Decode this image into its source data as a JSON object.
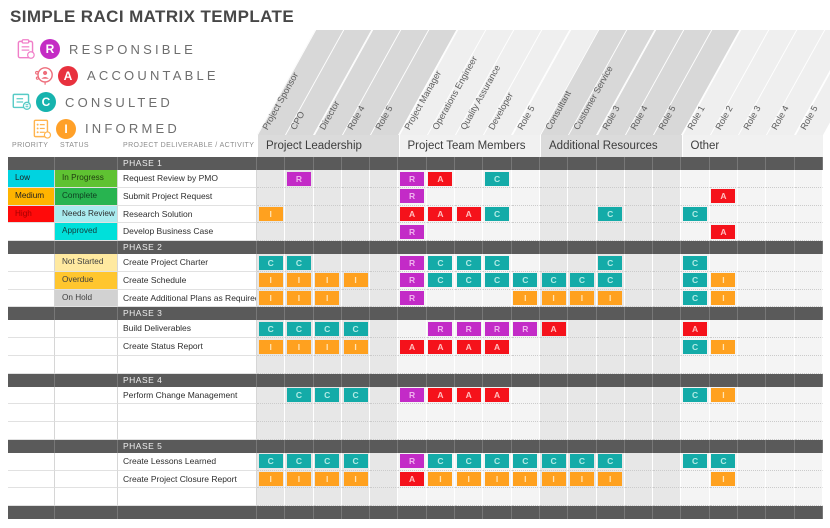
{
  "title": "SIMPLE RACI MATRIX TEMPLATE",
  "legend": [
    {
      "letter": "R",
      "label": "RESPONSIBLE",
      "color": "#C42CC4",
      "icon": "clipboard-icon",
      "icon_color": "#F07EC8"
    },
    {
      "letter": "A",
      "label": "ACCOUNTABLE",
      "color": "#E8313E",
      "icon": "person-icon",
      "icon_color": "#EE6E7C"
    },
    {
      "letter": "C",
      "label": "CONSULTED",
      "color": "#16B3AE",
      "icon": "monitor-icon",
      "icon_color": "#57CBC6"
    },
    {
      "letter": "I",
      "label": "INFORMED",
      "color": "#FFA028",
      "icon": "list-icon",
      "icon_color": "#FFB44E"
    }
  ],
  "table_headers": {
    "priority": "PRIORITY",
    "status": "STATUS",
    "deliverable": "PROJECT DELIVERABLE / ACTIVITY"
  },
  "groups": [
    {
      "label": "Project Leadership",
      "roles": [
        "Project Sponsor",
        "CPO",
        "Director",
        "Role 4",
        "Role 5"
      ]
    },
    {
      "label": "Project Team Members",
      "roles": [
        "Project Manager",
        "Operations Engineer",
        "Quality Assurance",
        "Developer",
        "Role 5"
      ]
    },
    {
      "label": "Additional Resources",
      "roles": [
        "Consultant",
        "Customer Service",
        "Role 3",
        "Role 4",
        "Role 5"
      ]
    },
    {
      "label": "Other",
      "roles": [
        "Role 1",
        "Role 2",
        "Role 3",
        "Role 4",
        "Role 5"
      ]
    }
  ],
  "raci_colors": {
    "R": {
      "bg": "#C32BC7",
      "fg": "#F0B2EE"
    },
    "A": {
      "bg": "#F5121B",
      "fg": "#FFC0C0"
    },
    "C": {
      "bg": "#14ABA8",
      "fg": "#B2EBE5"
    },
    "I": {
      "bg": "#FFA11F",
      "fg": "#FFE4B5"
    }
  },
  "priority_colors": {
    "Low": {
      "bg": "#00D3E0",
      "fg": "#1f1f1f"
    },
    "Medium": {
      "bg": "#FFB400",
      "fg": "#1f1f1f"
    },
    "High": {
      "bg": "#FF0A0A",
      "fg": "#A40000"
    }
  },
  "status_colors": {
    "In Progress": {
      "bg": "#5FC232",
      "fg": "#1f3a10"
    },
    "Complete": {
      "bg": "#28B450",
      "fg": "#0f3d20"
    },
    "Needs Review": {
      "bg": "#A9EBEF",
      "fg": "#2e2e2e"
    },
    "Approved": {
      "bg": "#00E0DA",
      "fg": "#123c3c"
    },
    "Not Started": {
      "bg": "#FFE9A0",
      "fg": "#3f3f3f"
    },
    "Overdue": {
      "bg": "#FFC62E",
      "fg": "#3f3f3f"
    },
    "On Hold": {
      "bg": "#D2D2D2",
      "fg": "#3f3f3f"
    }
  },
  "phases": [
    {
      "label": "PHASE 1",
      "rows": [
        {
          "priority": "Low",
          "status": "In Progress",
          "activity": "Request Review by PMO",
          "cells": {
            "2": "R",
            "6": "R",
            "7": "A",
            "9": "C"
          }
        },
        {
          "priority": "Medium",
          "status": "Complete",
          "activity": "Submit Project Request",
          "cells": {
            "6": "R",
            "17": "A"
          }
        },
        {
          "priority": "High",
          "status": "Needs Review",
          "activity": "Research Solution",
          "cells": {
            "1": "I",
            "6": "A",
            "7": "A",
            "8": "A",
            "9": "C",
            "13": "C",
            "16": "C"
          }
        },
        {
          "priority": "",
          "status": "Approved",
          "activity": "Develop Business Case",
          "cells": {
            "6": "R",
            "17": "A"
          }
        }
      ]
    },
    {
      "label": "PHASE 2",
      "rows": [
        {
          "priority": "",
          "status": "Not Started",
          "activity": "Create Project Charter",
          "cells": {
            "1": "C",
            "2": "C",
            "6": "R",
            "7": "C",
            "8": "C",
            "9": "C",
            "13": "C",
            "16": "C"
          }
        },
        {
          "priority": "",
          "status": "Overdue",
          "activity": "Create Schedule",
          "cells": {
            "1": "I",
            "2": "I",
            "3": "I",
            "4": "I",
            "6": "R",
            "7": "C",
            "8": "C",
            "9": "C",
            "10": "C",
            "11": "C",
            "12": "C",
            "13": "C",
            "16": "C",
            "17": "I"
          }
        },
        {
          "priority": "",
          "status": "On Hold",
          "activity": "Create Additional Plans as Required",
          "cells": {
            "1": "I",
            "2": "I",
            "3": "I",
            "6": "R",
            "10": "I",
            "11": "I",
            "12": "I",
            "13": "I",
            "16": "C",
            "17": "I"
          }
        }
      ]
    },
    {
      "label": "PHASE 3",
      "rows": [
        {
          "priority": "",
          "status": "",
          "activity": "Build Deliverables",
          "cells": {
            "1": "C",
            "2": "C",
            "3": "C",
            "4": "C",
            "7": "R",
            "8": "R",
            "9": "R",
            "10": "R",
            "11": "A",
            "16": "A"
          }
        },
        {
          "priority": "",
          "status": "",
          "activity": "Create Status Report",
          "cells": {
            "1": "I",
            "2": "I",
            "3": "I",
            "4": "I",
            "6": "A",
            "7": "A",
            "8": "A",
            "9": "A",
            "16": "C",
            "17": "I"
          }
        },
        {
          "priority": "",
          "status": "",
          "activity": "",
          "cells": {}
        }
      ]
    },
    {
      "label": "PHASE 4",
      "rows": [
        {
          "priority": "",
          "status": "",
          "activity": "Perform Change Management",
          "cells": {
            "2": "C",
            "3": "C",
            "4": "C",
            "6": "R",
            "7": "A",
            "8": "A",
            "9": "A",
            "16": "C",
            "17": "I"
          }
        },
        {
          "priority": "",
          "status": "",
          "activity": "",
          "cells": {}
        },
        {
          "priority": "",
          "status": "",
          "activity": "",
          "cells": {}
        }
      ]
    },
    {
      "label": "PHASE 5",
      "rows": [
        {
          "priority": "",
          "status": "",
          "activity": "Create Lessons Learned",
          "cells": {
            "1": "C",
            "2": "C",
            "3": "C",
            "4": "C",
            "6": "R",
            "7": "C",
            "8": "C",
            "9": "C",
            "10": "C",
            "11": "C",
            "12": "C",
            "13": "C",
            "16": "C",
            "17": "C"
          }
        },
        {
          "priority": "",
          "status": "",
          "activity": "Create Project Closure Report",
          "cells": {
            "1": "I",
            "2": "I",
            "3": "I",
            "4": "I",
            "6": "A",
            "7": "I",
            "8": "I",
            "9": "I",
            "10": "I",
            "11": "I",
            "12": "I",
            "13": "I",
            "17": "I"
          }
        },
        {
          "priority": "",
          "status": "",
          "activity": "",
          "cells": {}
        }
      ]
    },
    {
      "label": "",
      "rows": []
    }
  ]
}
